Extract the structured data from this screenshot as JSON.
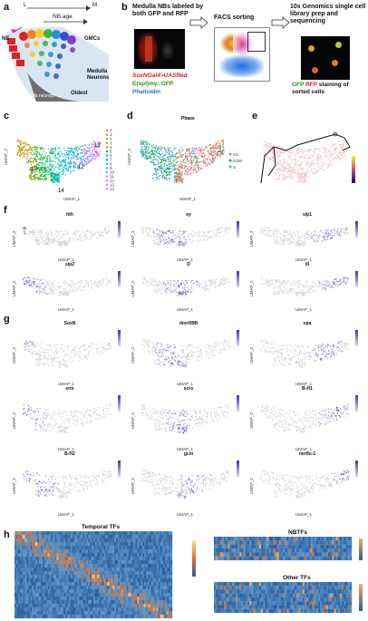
{
  "panels": {
    "a": {
      "label": "a",
      "axis_l": "L",
      "axis_m": "M",
      "nb_age": "NB age",
      "ne": "NE",
      "gmcs": "GMCs",
      "medulla_neurons": "Medulla Neurons",
      "oldest": "Oldest",
      "medulla_neuropil": "Medulla neuropil"
    },
    "b": {
      "label": "b",
      "title": "Medulla NBs labeled by both GFP and RFP",
      "driver": "SoxNGal4>UASRed",
      "marker_gfp": "E(spl)mγ::GFP",
      "marker_phalloidin": "Phalloidin",
      "facs": "FACS sorting",
      "tenx": "10x Genomics single cell library prep and sequencing",
      "staining_gfp": "GFP",
      "staining_rfp": "RFP",
      "staining_rest": "staining of sorted cells"
    },
    "c": {
      "label": "c",
      "cluster_labels": [
        "10",
        "14",
        "12",
        "13"
      ],
      "legend": [
        "0",
        "1",
        "2",
        "3",
        "4",
        "5",
        "6",
        "7",
        "8",
        "9",
        "10",
        "11",
        "12",
        "13",
        "14"
      ]
    },
    "d": {
      "label": "d",
      "title": "Phase",
      "legend": [
        "G1",
        "G2M",
        "S"
      ]
    },
    "e": {
      "label": "e"
    },
    "f": {
      "label": "f",
      "genes": [
        "hth",
        "ey",
        "slp1",
        "slp2",
        "D",
        "tll"
      ]
    },
    "g": {
      "label": "g",
      "genes": [
        "SoxN",
        "dmrt99B",
        "opa",
        "erm",
        "scro",
        "B-H1",
        "B-H2",
        "gcm",
        "nerfin-1"
      ]
    },
    "h": {
      "label": "h",
      "temporal": "Temporal TFs",
      "nbtfs": "NBTFs",
      "other": "Other TFs"
    },
    "axes": {
      "umap1": "UMAP_1",
      "umap2": "UMAP_2"
    }
  },
  "colors": {
    "umap_high": "#4a3bc8",
    "umap_low": "#d4d4d4",
    "heat_low": "#3a6ea5",
    "heat_high": "#f2c14e"
  }
}
